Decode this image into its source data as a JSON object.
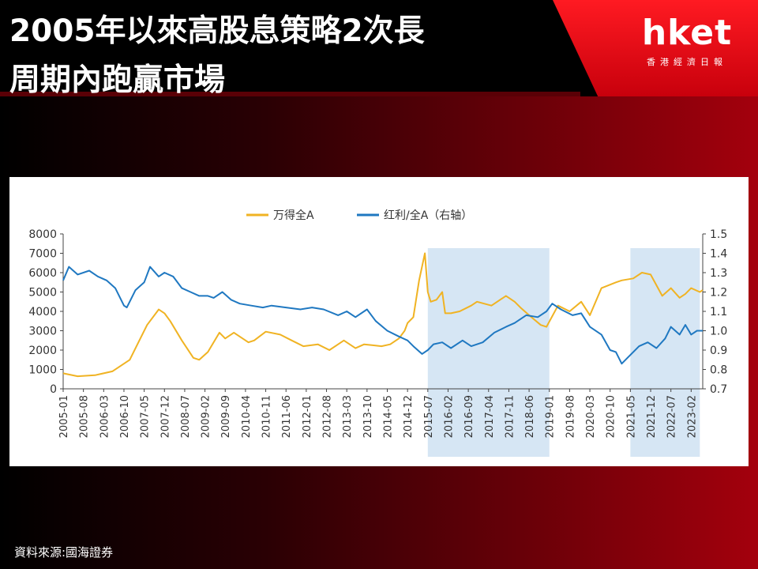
{
  "title_lines": [
    "2005年以來高股息策略2次長",
    "周期內跑贏市場"
  ],
  "logo": {
    "text": "hket",
    "subtitle": "香港經濟日報"
  },
  "source": "資料來源:國海證券",
  "colors": {
    "wind_all_a": "#f0b323",
    "dividend_ratio": "#1f78c1",
    "shade": "#d6e6f4"
  },
  "chart_data": {
    "type": "line",
    "title": "",
    "legend": [
      {
        "name": "万得全A",
        "color": "#f0b323"
      },
      {
        "name": "红利/全A（右轴）",
        "color": "#1f78c1"
      }
    ],
    "legend_position": "top-center",
    "grid": false,
    "x_ticks": [
      "2005-01",
      "2005-08",
      "2006-03",
      "2006-10",
      "2007-05",
      "2007-12",
      "2008-07",
      "2009-02",
      "2009-09",
      "2010-04",
      "2010-11",
      "2011-06",
      "2012-01",
      "2012-08",
      "2013-03",
      "2013-10",
      "2014-05",
      "2014-12",
      "2015-07",
      "2016-02",
      "2016-09",
      "2017-04",
      "2017-11",
      "2018-06",
      "2019-01",
      "2019-08",
      "2020-03",
      "2020-10",
      "2021-05",
      "2021-12",
      "2022-07",
      "2023-02"
    ],
    "x_range": [
      "2005-01",
      "2023-06"
    ],
    "y_left": {
      "ticks": [
        0,
        1000,
        2000,
        3000,
        4000,
        5000,
        6000,
        7000,
        8000
      ],
      "lim": [
        0,
        8000
      ]
    },
    "y_right": {
      "ticks": [
        "0.7",
        "0.8",
        "0.9",
        "1.0",
        "1.1",
        "1.2",
        "1.3",
        "1.4",
        "1.5"
      ],
      "lim": [
        0.7,
        1.5
      ]
    },
    "shaded_periods": [
      [
        "2015-07",
        "2019-01"
      ],
      [
        "2021-05",
        "2023-05"
      ]
    ],
    "series": [
      {
        "name": "万得全A",
        "axis": "left",
        "x": [
          "2005-01",
          "2005-06",
          "2005-12",
          "2006-06",
          "2006-12",
          "2007-03",
          "2007-06",
          "2007-10",
          "2007-12",
          "2008-02",
          "2008-06",
          "2008-10",
          "2008-12",
          "2009-03",
          "2009-07",
          "2009-09",
          "2009-12",
          "2010-05",
          "2010-07",
          "2010-11",
          "2011-04",
          "2011-08",
          "2011-12",
          "2012-05",
          "2012-09",
          "2012-12",
          "2013-02",
          "2013-06",
          "2013-09",
          "2013-12",
          "2014-03",
          "2014-06",
          "2014-09",
          "2014-11",
          "2014-12",
          "2015-02",
          "2015-04",
          "2015-06",
          "2015-07",
          "2015-08",
          "2015-10",
          "2015-12",
          "2016-01",
          "2016-03",
          "2016-06",
          "2016-10",
          "2016-12",
          "2017-05",
          "2017-10",
          "2018-01",
          "2018-03",
          "2018-06",
          "2018-10",
          "2018-12",
          "2019-04",
          "2019-08",
          "2019-12",
          "2020-03",
          "2020-07",
          "2020-12",
          "2021-02",
          "2021-06",
          "2021-09",
          "2021-12",
          "2022-04",
          "2022-07",
          "2022-10",
          "2022-12",
          "2023-02",
          "2023-05",
          "2023-06"
        ],
        "y": [
          800,
          650,
          700,
          900,
          1500,
          2400,
          3300,
          4100,
          3900,
          3500,
          2500,
          1600,
          1500,
          1900,
          2900,
          2600,
          2900,
          2400,
          2500,
          2950,
          2800,
          2500,
          2200,
          2300,
          2000,
          2300,
          2500,
          2100,
          2300,
          2250,
          2200,
          2300,
          2600,
          3000,
          3400,
          3700,
          5600,
          7000,
          5000,
          4500,
          4600,
          5000,
          3900,
          3900,
          4000,
          4300,
          4500,
          4300,
          4800,
          4500,
          4200,
          3800,
          3300,
          3200,
          4300,
          4000,
          4500,
          3800,
          5200,
          5500,
          5600,
          5700,
          6000,
          5900,
          4800,
          5200,
          4700,
          4900,
          5200,
          5000,
          5100
        ]
      },
      {
        "name": "红利/全A（右轴）",
        "axis": "right",
        "x": [
          "2005-01",
          "2005-03",
          "2005-06",
          "2005-10",
          "2006-01",
          "2006-04",
          "2006-07",
          "2006-10",
          "2006-11",
          "2007-02",
          "2007-05",
          "2007-07",
          "2007-10",
          "2007-12",
          "2008-03",
          "2008-06",
          "2008-09",
          "2008-12",
          "2009-03",
          "2009-05",
          "2009-08",
          "2009-11",
          "2010-02",
          "2010-06",
          "2010-10",
          "2011-01",
          "2011-06",
          "2011-11",
          "2012-03",
          "2012-07",
          "2012-12",
          "2013-03",
          "2013-06",
          "2013-10",
          "2014-01",
          "2014-05",
          "2014-09",
          "2014-12",
          "2015-02",
          "2015-05",
          "2015-07",
          "2015-09",
          "2015-12",
          "2016-03",
          "2016-07",
          "2016-10",
          "2017-02",
          "2017-06",
          "2017-10",
          "2018-01",
          "2018-05",
          "2018-09",
          "2018-12",
          "2019-02",
          "2019-05",
          "2019-09",
          "2019-12",
          "2020-03",
          "2020-07",
          "2020-10",
          "2020-12",
          "2021-02",
          "2021-04",
          "2021-08",
          "2021-11",
          "2022-02",
          "2022-05",
          "2022-07",
          "2022-10",
          "2022-12",
          "2023-02",
          "2023-04",
          "2023-06"
        ],
        "y": [
          1.26,
          1.33,
          1.29,
          1.31,
          1.28,
          1.26,
          1.22,
          1.13,
          1.12,
          1.21,
          1.25,
          1.33,
          1.28,
          1.3,
          1.28,
          1.22,
          1.2,
          1.18,
          1.18,
          1.17,
          1.2,
          1.16,
          1.14,
          1.13,
          1.12,
          1.13,
          1.12,
          1.11,
          1.12,
          1.11,
          1.08,
          1.1,
          1.07,
          1.11,
          1.05,
          1.0,
          0.97,
          0.95,
          0.92,
          0.88,
          0.9,
          0.93,
          0.94,
          0.91,
          0.95,
          0.92,
          0.94,
          0.99,
          1.02,
          1.04,
          1.08,
          1.07,
          1.1,
          1.14,
          1.11,
          1.08,
          1.09,
          1.02,
          0.98,
          0.9,
          0.89,
          0.83,
          0.86,
          0.92,
          0.94,
          0.91,
          0.96,
          1.02,
          0.98,
          1.03,
          0.98,
          1.0,
          1.0
        ]
      }
    ]
  }
}
